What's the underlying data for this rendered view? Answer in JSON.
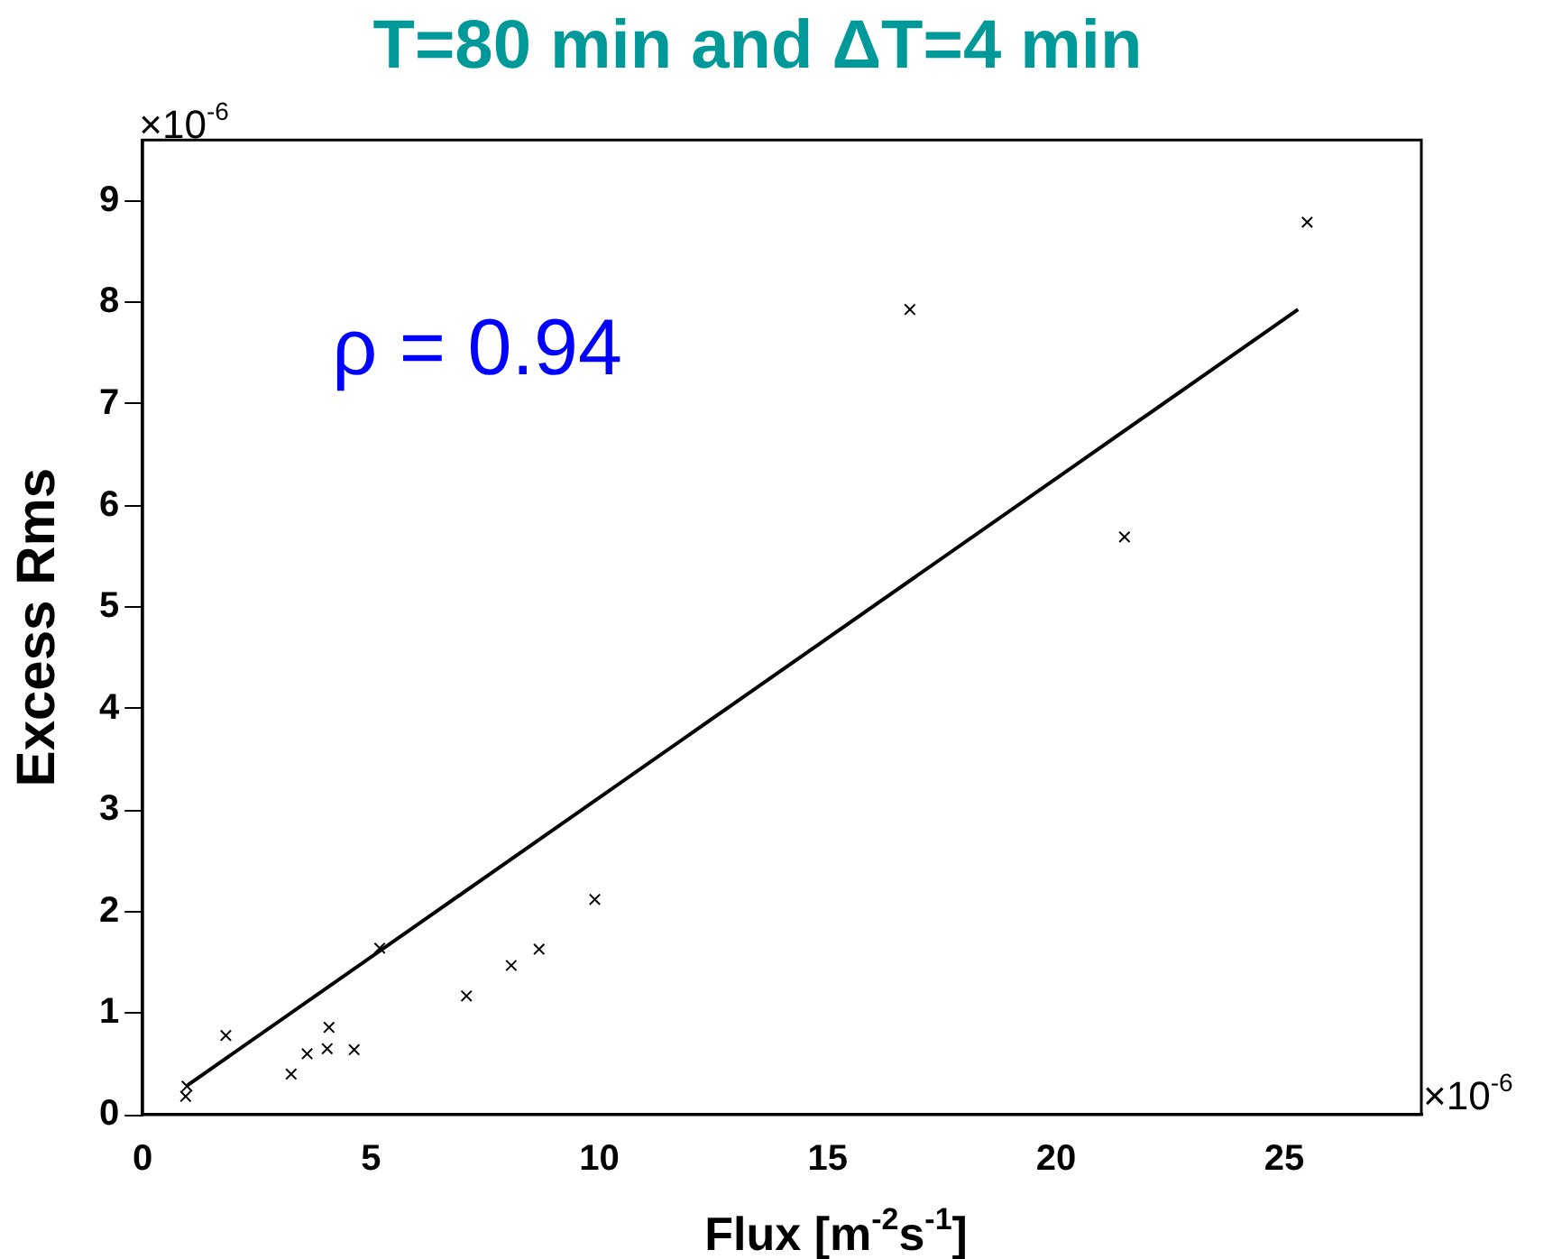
{
  "chart_data": {
    "type": "scatter",
    "title": "T=80 min and ΔT=4 min",
    "xlabel": "Flux [m$^{-2}$s$^{-1}$]",
    "ylabel": "Excess Rms",
    "annotations": [
      "ρ = 0.94",
      "×10$^{-6}$",
      "×10$^{-6}$"
    ],
    "xlim": [
      0,
      28
    ],
    "xticks": [
      0,
      5,
      10,
      15,
      20,
      25
    ],
    "ylim": [
      0,
      9.6
    ],
    "yticks": [
      0,
      1,
      2,
      3,
      4,
      5,
      6,
      7,
      8,
      9
    ],
    "grid": false,
    "legend": false,
    "marker": "cross",
    "series": [
      {
        "type": "scatter",
        "color": "#000000",
        "x": [
          0.97,
          0.94,
          1.82,
          3.25,
          3.6,
          4.08,
          4.04,
          4.63,
          5.19,
          7.09,
          8.07,
          8.68,
          9.9,
          16.8,
          21.5,
          25.5
        ],
        "values": [
          0.28,
          0.18,
          0.78,
          0.4,
          0.6,
          0.86,
          0.65,
          0.64,
          1.64,
          1.17,
          1.47,
          1.63,
          2.12,
          7.93,
          5.69,
          8.79
        ]
      },
      {
        "type": "line",
        "color": "#000000",
        "marker": "none",
        "line_style": "solid",
        "x": [
          0.98,
          25.3
        ],
        "values": [
          0.29,
          7.93
        ]
      }
    ]
  }
}
